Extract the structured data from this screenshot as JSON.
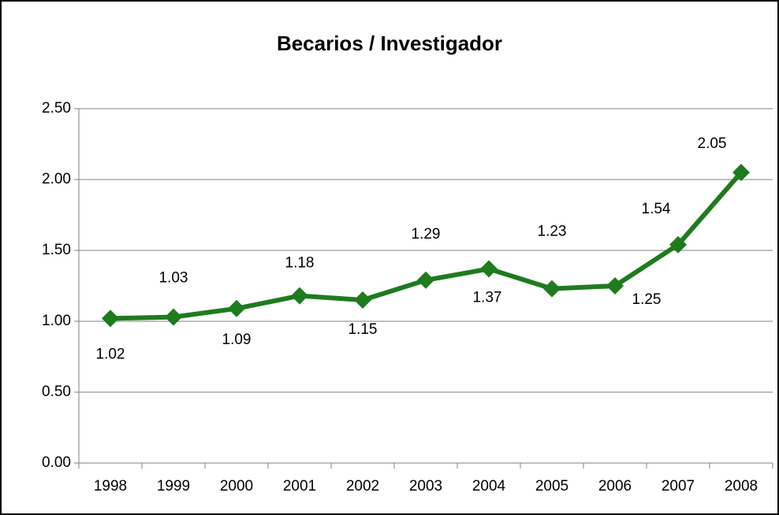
{
  "chart_data": {
    "type": "line",
    "title": "Becarios / Investigador",
    "categories": [
      "1998",
      "1999",
      "2000",
      "2001",
      "2002",
      "2003",
      "2004",
      "2005",
      "2006",
      "2007",
      "2008"
    ],
    "values": [
      1.02,
      1.03,
      1.09,
      1.18,
      1.15,
      1.29,
      1.37,
      1.23,
      1.25,
      1.54,
      2.05
    ],
    "color": "#1e7b1e",
    "ylim": [
      0,
      2.5
    ],
    "yticks": [
      {
        "value": 0,
        "label": "0.00"
      },
      {
        "value": 0.5,
        "label": "0.50"
      },
      {
        "value": 1,
        "label": "1.00"
      },
      {
        "value": 1.5,
        "label": "1.50"
      },
      {
        "value": 2,
        "label": "2.00"
      },
      {
        "value": 2.5,
        "label": "2.50"
      }
    ],
    "grid": true
  }
}
